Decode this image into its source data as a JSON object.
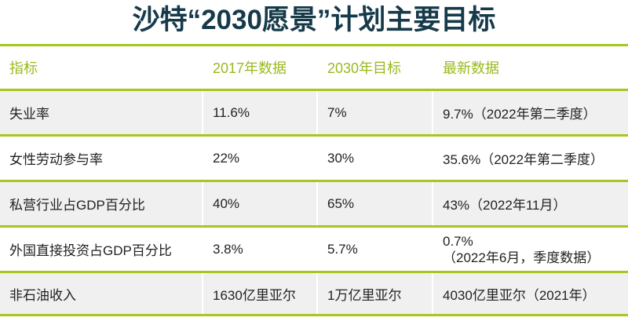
{
  "title": "沙特“2030愿景”计划主要目标",
  "colors": {
    "accent_green": "#a6c620",
    "header_text": "#9ab91e",
    "title": "#163a4a",
    "row_gray": "#f0f0f0"
  },
  "table": {
    "headers": [
      "指标",
      "2017年数据",
      "2030年目标",
      "最新数据"
    ],
    "rows": [
      {
        "indicator": "失业率",
        "y2017": "11.6%",
        "target2030": "7%",
        "latest": [
          "9.7%（2022年第二季度）"
        ]
      },
      {
        "indicator": "女性劳动参与率",
        "y2017": "22%",
        "target2030": "30%",
        "latest": [
          "35.6%（2022年第二季度）"
        ]
      },
      {
        "indicator": "私营行业占GDP百分比",
        "y2017": "40%",
        "target2030": "65%",
        "latest": [
          "43%（2022年11月）"
        ]
      },
      {
        "indicator": "外国直接投资占GDP百分比",
        "y2017": "3.8%",
        "target2030": "5.7%",
        "latest": [
          "0.7%",
          "（2022年6月，季度数据）"
        ]
      },
      {
        "indicator": "非石油收入",
        "y2017": "1630亿里亚尔",
        "target2030": "1万亿里亚尔",
        "latest": [
          "4030亿里亚尔（2021年）"
        ]
      }
    ]
  }
}
